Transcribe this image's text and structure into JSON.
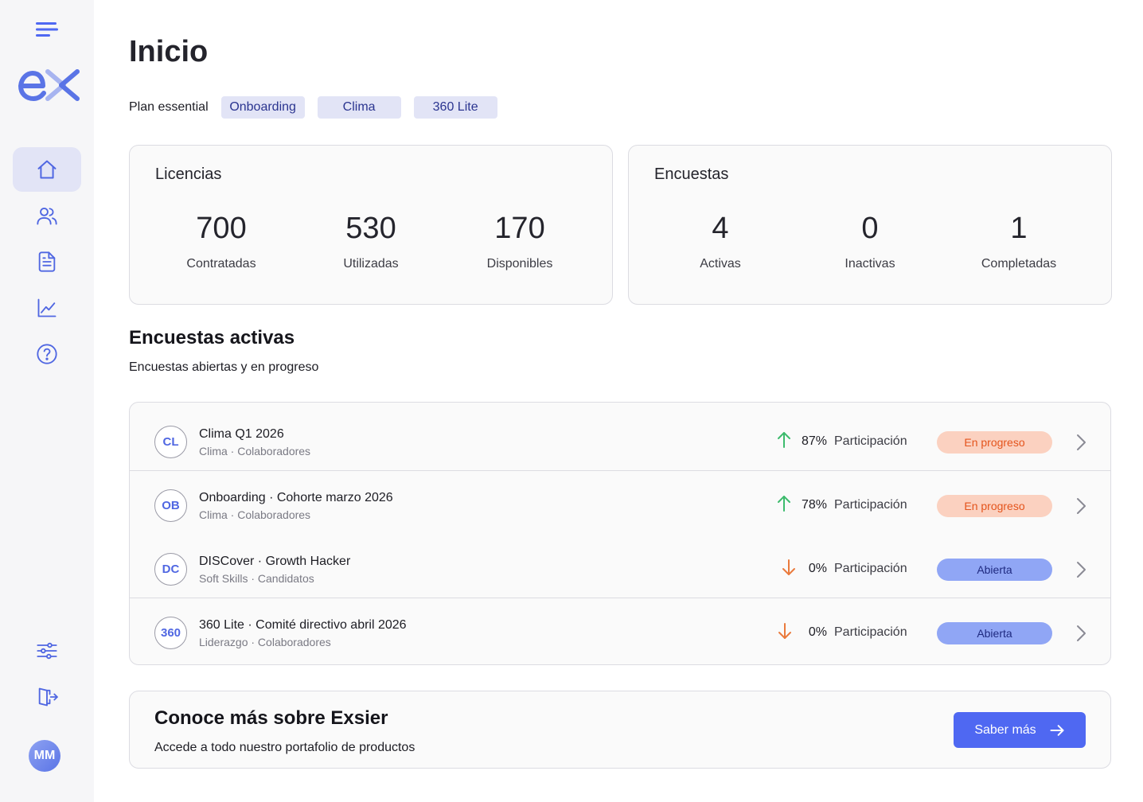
{
  "app": {
    "logo_text": "ex",
    "user_initials": "MM"
  },
  "sidebar": {
    "items": [
      {
        "name": "home",
        "icon": "home-icon",
        "active": true
      },
      {
        "name": "users",
        "icon": "users-icon",
        "active": false
      },
      {
        "name": "documents",
        "icon": "document-icon",
        "active": false
      },
      {
        "name": "analytics",
        "icon": "chart-icon",
        "active": false
      },
      {
        "name": "help",
        "icon": "help-icon",
        "active": false
      }
    ],
    "bottom": [
      {
        "name": "settings",
        "icon": "sliders-icon"
      },
      {
        "name": "logout",
        "icon": "logout-icon"
      }
    ]
  },
  "header": {
    "title": "Inicio",
    "plan_label": "Plan essential",
    "chips": [
      "Onboarding",
      "Clima",
      "360 Lite"
    ]
  },
  "licencias": {
    "title": "Licencias",
    "stats": [
      {
        "value": "700",
        "label": "Contratadas"
      },
      {
        "value": "530",
        "label": "Utilizadas"
      },
      {
        "value": "170",
        "label": "Disponibles"
      }
    ]
  },
  "encuestas": {
    "title": "Encuestas",
    "stats": [
      {
        "value": "4",
        "label": "Activas"
      },
      {
        "value": "0",
        "label": "Inactivas"
      },
      {
        "value": "1",
        "label": "Completadas"
      }
    ]
  },
  "active_section": {
    "title": "Encuestas activas",
    "subtitle": "Encuestas abiertas y en progreso",
    "rows": [
      {
        "badge": "CL",
        "title": "Clima Q1 2026",
        "meta": "Clima · Colaboradores",
        "trend": "up",
        "pct": "87%",
        "participation_label": "Participación",
        "status": "En progreso",
        "status_kind": "progress"
      },
      {
        "badge": "OB",
        "title": "Onboarding · Cohorte marzo 2026",
        "meta": "Clima · Colaboradores",
        "trend": "up",
        "pct": "78%",
        "participation_label": "Participación",
        "status": "En progreso",
        "status_kind": "progress"
      },
      {
        "badge": "DC",
        "title": "DISCover · Growth Hacker",
        "meta": "Soft Skills · Candidatos",
        "trend": "down",
        "pct": "0%",
        "participation_label": "Participación",
        "status": "Abierta",
        "status_kind": "open"
      },
      {
        "badge": "360",
        "title": "360 Lite · Comité directivo abril 2026",
        "meta": "Liderazgo · Colaboradores",
        "trend": "down",
        "pct": "0%",
        "participation_label": "Participación",
        "status": "Abierta",
        "status_kind": "open"
      }
    ]
  },
  "promo": {
    "title": "Conoce más sobre Exsier",
    "subtitle": "Accede a todo nuestro portafolio de productos",
    "button_label": "Saber más"
  },
  "colors": {
    "accent": "#4f68f2",
    "trend_up": "#3dbb6d",
    "trend_down": "#ea7a3c",
    "status_progress_bg": "#fbd1c0",
    "status_open_bg": "#90a6f5"
  }
}
